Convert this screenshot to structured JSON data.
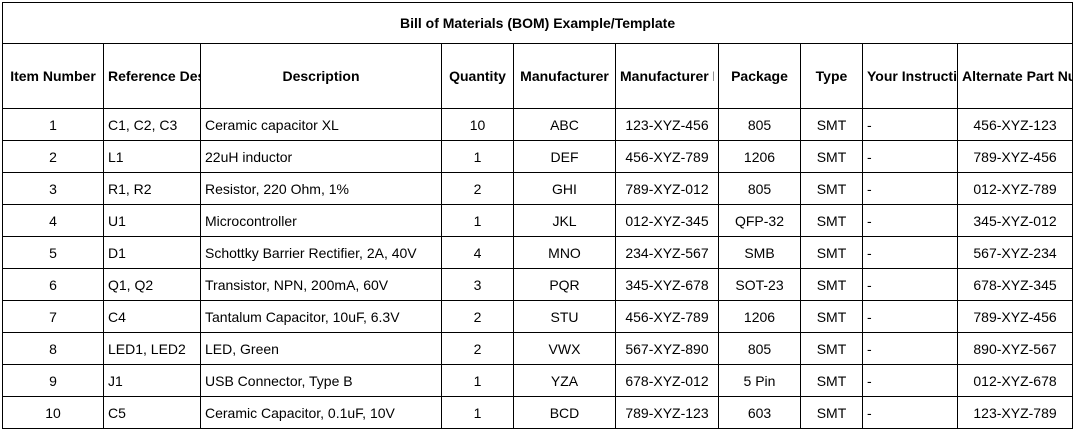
{
  "title": "Bill of Materials (BOM) Example/Template",
  "headers": [
    "Item Number",
    "Reference Designator",
    "Description",
    "Quantity",
    "Manufacturer",
    "Manufacturer Part Number (Mfg. P/N)",
    "Package",
    "Type",
    "Your Instructions",
    "Alternate Part Numbers"
  ],
  "rows": [
    {
      "item": "1",
      "ref": "C1, C2, C3",
      "desc": "Ceramic capacitor XL",
      "qty": "10",
      "mfr": "ABC",
      "mpn": "123-XYZ-456",
      "pkg": "805",
      "type": "SMT",
      "instr": "-",
      "alt": "456-XYZ-123"
    },
    {
      "item": "2",
      "ref": "L1",
      "desc": "22uH inductor",
      "qty": "1",
      "mfr": "DEF",
      "mpn": "456-XYZ-789",
      "pkg": "1206",
      "type": "SMT",
      "instr": "-",
      "alt": "789-XYZ-456"
    },
    {
      "item": "3",
      "ref": "R1, R2",
      "desc": "Resistor, 220 Ohm, 1%",
      "qty": "2",
      "mfr": "GHI",
      "mpn": "789-XYZ-012",
      "pkg": "805",
      "type": "SMT",
      "instr": "-",
      "alt": "012-XYZ-789"
    },
    {
      "item": "4",
      "ref": "U1",
      "desc": "Microcontroller",
      "qty": "1",
      "mfr": "JKL",
      "mpn": "012-XYZ-345",
      "pkg": "QFP-32",
      "type": "SMT",
      "instr": "-",
      "alt": "345-XYZ-012"
    },
    {
      "item": "5",
      "ref": "D1",
      "desc": "Schottky Barrier Rectifier, 2A, 40V",
      "qty": "4",
      "mfr": "MNO",
      "mpn": "234-XYZ-567",
      "pkg": "SMB",
      "type": "SMT",
      "instr": "-",
      "alt": "567-XYZ-234"
    },
    {
      "item": "6",
      "ref": "Q1, Q2",
      "desc": "Transistor, NPN, 200mA, 60V",
      "qty": "3",
      "mfr": "PQR",
      "mpn": "345-XYZ-678",
      "pkg": "SOT-23",
      "type": "SMT",
      "instr": "-",
      "alt": "678-XYZ-345"
    },
    {
      "item": "7",
      "ref": "C4",
      "desc": "Tantalum Capacitor, 10uF, 6.3V",
      "qty": "2",
      "mfr": "STU",
      "mpn": "456-XYZ-789",
      "pkg": "1206",
      "type": "SMT",
      "instr": "-",
      "alt": "789-XYZ-456"
    },
    {
      "item": "8",
      "ref": "LED1, LED2",
      "desc": "LED, Green",
      "qty": "2",
      "mfr": "VWX",
      "mpn": "567-XYZ-890",
      "pkg": "805",
      "type": "SMT",
      "instr": "-",
      "alt": "890-XYZ-567"
    },
    {
      "item": "9",
      "ref": "J1",
      "desc": "USB Connector, Type B",
      "qty": "1",
      "mfr": "YZA",
      "mpn": "678-XYZ-012",
      "pkg": "5 Pin",
      "type": "SMT",
      "instr": "-",
      "alt": "012-XYZ-678"
    },
    {
      "item": "10",
      "ref": "C5",
      "desc": "Ceramic Capacitor, 0.1uF, 10V",
      "qty": "1",
      "mfr": "BCD",
      "mpn": "789-XYZ-123",
      "pkg": "603",
      "type": "SMT",
      "instr": "-",
      "alt": "123-XYZ-789"
    }
  ]
}
